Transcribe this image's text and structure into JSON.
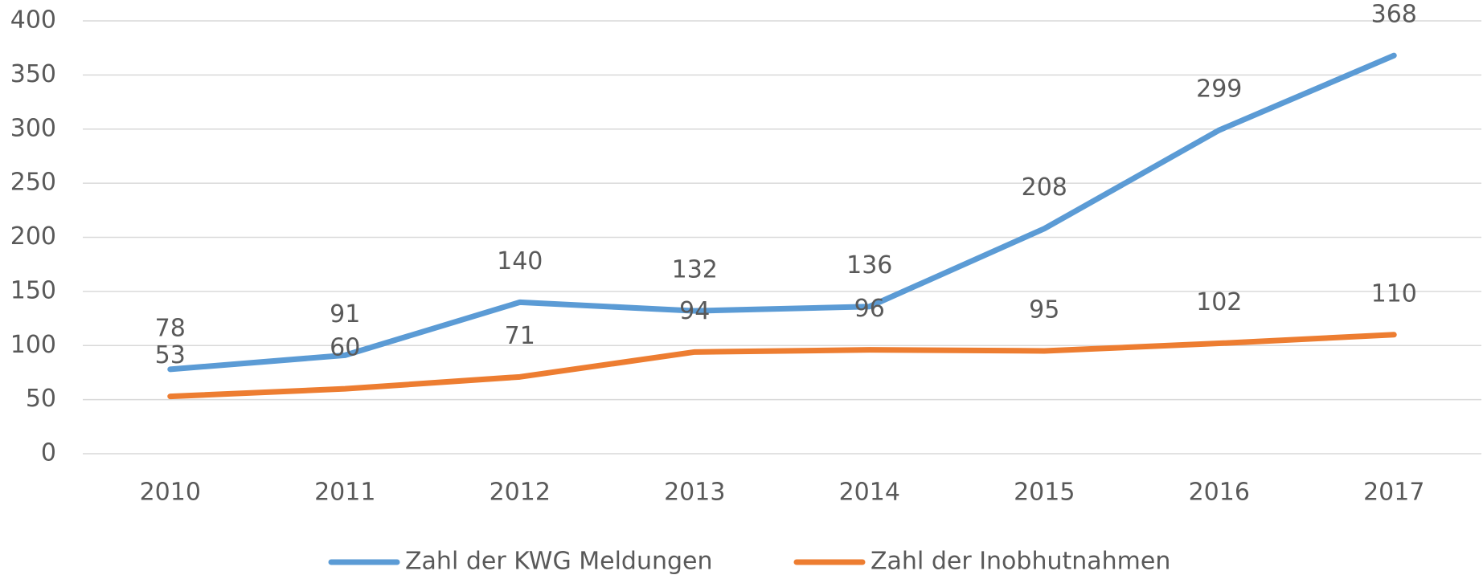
{
  "chart_data": {
    "type": "line",
    "categories": [
      "2010",
      "2011",
      "2012",
      "2013",
      "2014",
      "2015",
      "2016",
      "2017"
    ],
    "series": [
      {
        "name": "Zahl der KWG Meldungen",
        "color": "#5b9bd5",
        "values": [
          78,
          91,
          140,
          132,
          136,
          208,
          299,
          368
        ]
      },
      {
        "name": "Zahl der Inobhutnahmen",
        "color": "#ed7d31",
        "values": [
          53,
          60,
          71,
          94,
          96,
          95,
          102,
          110
        ]
      }
    ],
    "ylim": [
      0,
      400
    ],
    "yticks": [
      0,
      50,
      100,
      150,
      200,
      250,
      300,
      350,
      400
    ],
    "grid": true,
    "legend": "bottom",
    "data_labels": true
  }
}
